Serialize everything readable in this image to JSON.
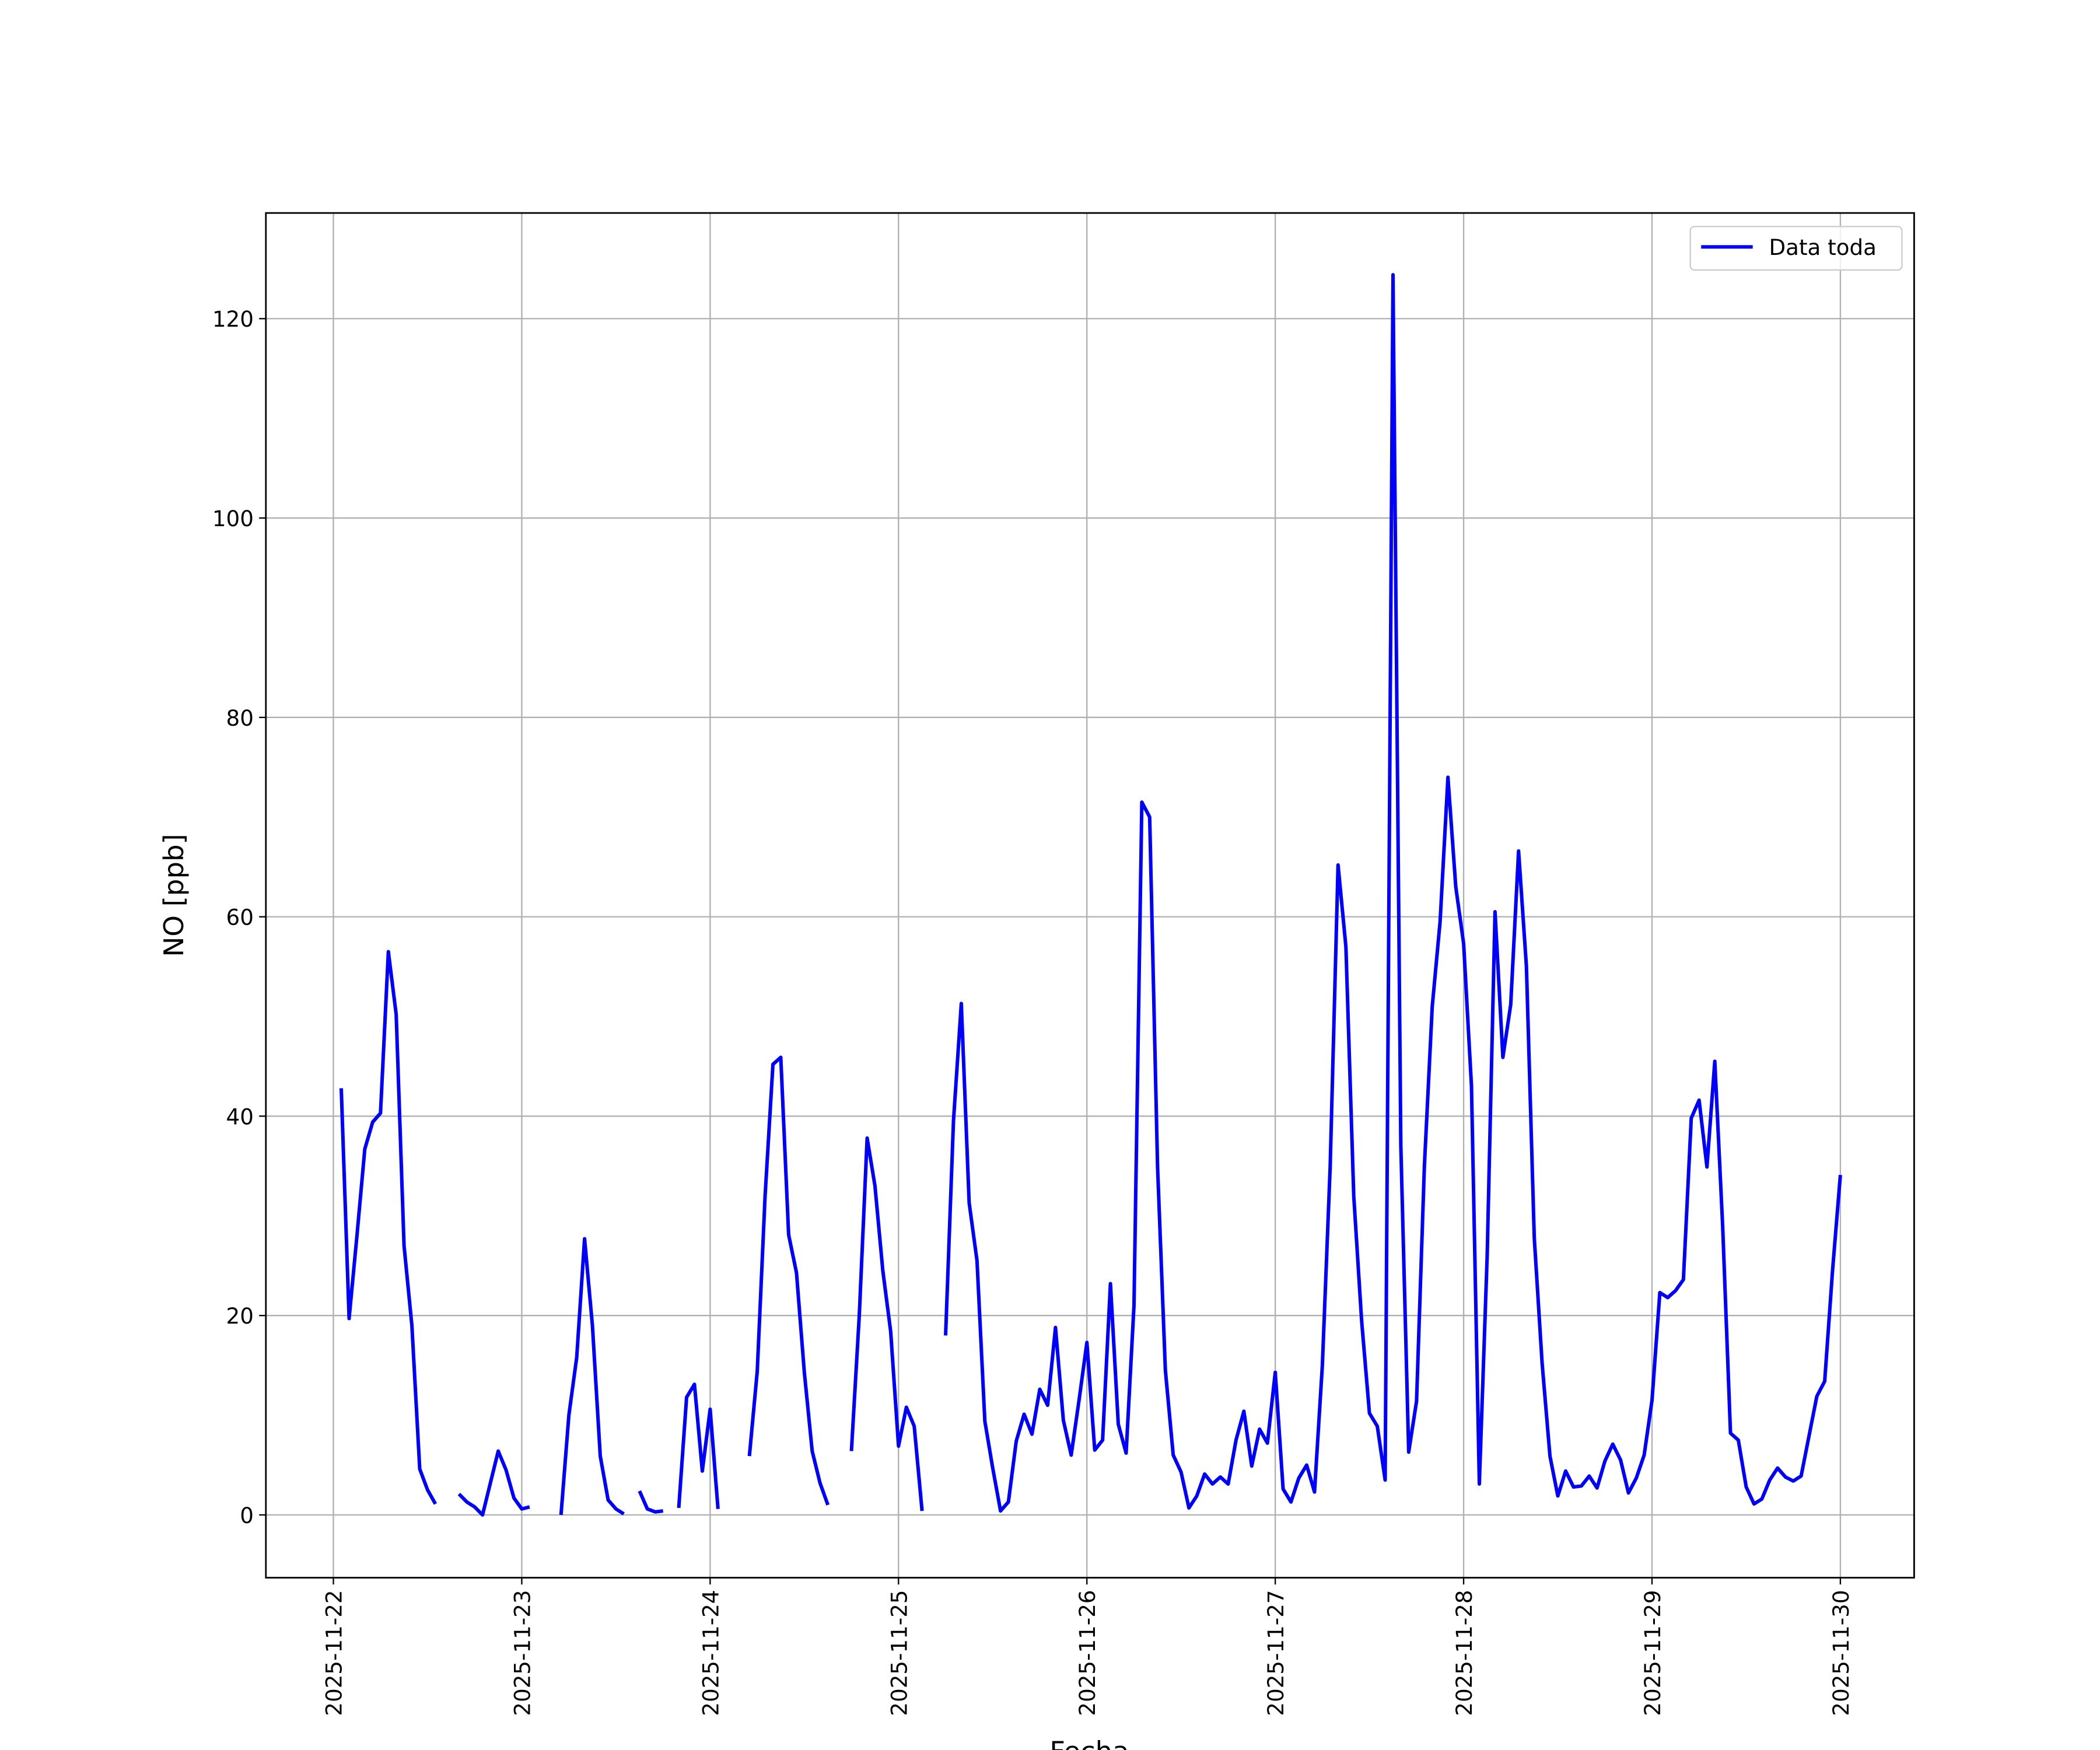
{
  "chart_data": {
    "type": "line",
    "xlabel": "Fecha",
    "ylabel": "NO [ppb]",
    "x": [
      1,
      2,
      3,
      4,
      5,
      6,
      7,
      8,
      9,
      10,
      11,
      12,
      13,
      14,
      15,
      16,
      17,
      18,
      19,
      20,
      21,
      22,
      23,
      24,
      25,
      26,
      27,
      28,
      29,
      30,
      31,
      32,
      33,
      34,
      35,
      36,
      37,
      38,
      39,
      40,
      41,
      42,
      43,
      44,
      45,
      46,
      47,
      48,
      49,
      50,
      51,
      52,
      53,
      54,
      55,
      56,
      57,
      58,
      59,
      60,
      61,
      62,
      63,
      64,
      65,
      66,
      67,
      68,
      69,
      70,
      71,
      72,
      73,
      74,
      75,
      76,
      77,
      78,
      79,
      80,
      81,
      82,
      83,
      84,
      85,
      86,
      87,
      88,
      89,
      90,
      91,
      92,
      93,
      94,
      95,
      96,
      97,
      98,
      99,
      100,
      101,
      102,
      103,
      104,
      105,
      106,
      107,
      108,
      109,
      110,
      111,
      112,
      113,
      114,
      115,
      116,
      117,
      118,
      119,
      120,
      121,
      122,
      123,
      124,
      125,
      126,
      127,
      128,
      129,
      130,
      131,
      132,
      133,
      134,
      135,
      136,
      137,
      138,
      139,
      140,
      141,
      142,
      143,
      144,
      145,
      146,
      147,
      148,
      149,
      150,
      151,
      152,
      153,
      154,
      155,
      156,
      157,
      158,
      159,
      160,
      161,
      162,
      163,
      164,
      165,
      166,
      167,
      168,
      169,
      170,
      171,
      172,
      173,
      174,
      175,
      176,
      177,
      178,
      179,
      180,
      181,
      182,
      183,
      184,
      185,
      186,
      187,
      188,
      189,
      190,
      191,
      192
    ],
    "series": [
      {
        "name": "Data toda",
        "color": "#0000ff",
        "values": [
          42.8,
          19.7,
          28,
          36.7,
          39.4,
          40.3,
          56.5,
          50.2,
          27,
          19,
          4.6,
          2.5,
          1.1,
          null,
          null,
          2.1,
          1.3,
          0.8,
          0,
          3.2,
          6.4,
          4.5,
          1.7,
          0.6,
          0.8,
          null,
          null,
          null,
          0,
          10,
          15.8,
          27.7,
          19,
          5.9,
          1.5,
          0.6,
          0.1,
          null,
          2.4,
          0.6,
          0.3,
          0.4,
          null,
          0.7,
          11.8,
          13.1,
          4.4,
          10.6,
          0.6,
          null,
          null,
          null,
          5.9,
          14.4,
          32,
          45.2,
          45.9,
          28.1,
          24.3,
          14.3,
          6.4,
          3.2,
          1,
          null,
          null,
          6.4,
          20,
          37.8,
          33,
          24.5,
          18.4,
          6.9,
          10.8,
          8.9,
          0.4,
          null,
          null,
          18,
          39.5,
          51.3,
          31.3,
          25.5,
          9.4,
          4.7,
          0.4,
          1.3,
          7.4,
          10.1,
          8.1,
          12.6,
          11,
          18.8,
          9.5,
          6,
          11.5,
          17.3,
          6.5,
          7.5,
          23.2,
          9.1,
          6.2,
          21,
          71.5,
          70,
          35,
          14.5,
          6,
          4.3,
          0.7,
          1.9,
          4.1,
          3.1,
          3.8,
          3.1,
          7.5,
          10.4,
          4.9,
          8.6,
          7.2,
          14.3,
          2.6,
          1.3,
          3.7,
          5,
          2.3,
          15,
          35,
          65.2,
          57,
          32,
          19.5,
          10.2,
          8.9,
          3.5,
          124.4,
          37,
          6.3,
          11.4,
          35,
          51,
          59.5,
          74,
          63,
          57.3,
          43,
          3.1,
          26,
          60.5,
          45.9,
          51.2,
          66.6,
          55,
          27.8,
          15.2,
          5.9,
          1.9,
          4.4,
          2.8,
          2.9,
          3.9,
          2.7,
          5.4,
          7.1,
          5.5,
          2.2,
          3.7,
          6,
          11.5,
          22.3,
          21.8,
          22.5,
          23.6,
          39.8,
          41.6,
          34.9,
          45.5,
          29,
          8.2,
          7.5,
          2.8,
          1.1,
          1.6,
          3.5,
          4.7,
          3.8,
          3.4,
          3.9,
          7.9,
          11.9,
          13.4,
          24.5,
          34.1
        ]
      }
    ],
    "xlim": [
      -8.6,
      201.4
    ],
    "xticks": [
      {
        "value": 0,
        "label": "2025-11-22"
      },
      {
        "value": 24,
        "label": "2025-11-23"
      },
      {
        "value": 48,
        "label": "2025-11-24"
      },
      {
        "value": 72,
        "label": "2025-11-25"
      },
      {
        "value": 96,
        "label": "2025-11-26"
      },
      {
        "value": 120,
        "label": "2025-11-27"
      },
      {
        "value": 144,
        "label": "2025-11-28"
      },
      {
        "value": 168,
        "label": "2025-11-29"
      },
      {
        "value": 192,
        "label": "2025-11-30"
      }
    ],
    "ylim": [
      -6.3,
      130.6
    ],
    "yticks": [
      0,
      20,
      40,
      60,
      80,
      100,
      120
    ],
    "grid": true,
    "legend": "upper right"
  }
}
